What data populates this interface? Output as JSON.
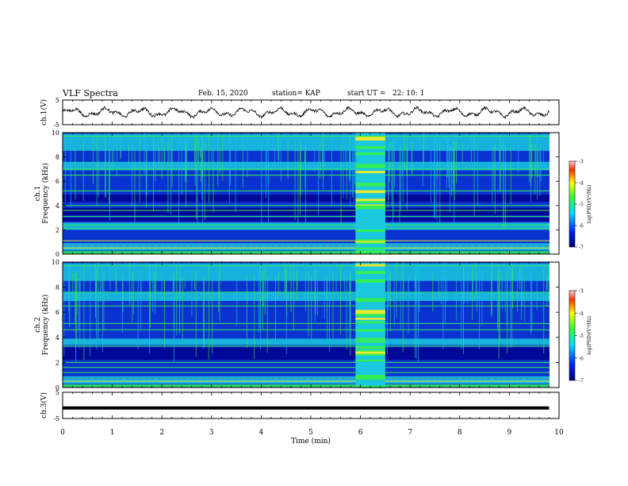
{
  "header": {
    "title": "VLF Spectra",
    "date": "Feb. 15, 2020",
    "station": "station= KAP",
    "start": "start UT =   22: 10: 1"
  },
  "chart_data": [
    {
      "type": "line",
      "panel": "ch1-waveform",
      "ylabel": "ch.1(V)",
      "ylim": [
        -5,
        5
      ],
      "y_ticks": [
        "5",
        "-5"
      ],
      "xlim": [
        0,
        10
      ],
      "shape": "noisy oscillation roughly between -2 and +2 V from 0 to ~9.8 min"
    },
    {
      "type": "heatmap",
      "panel": "ch1-spectrogram",
      "ylabel": "ch.1\nFrequency (kHz)",
      "ylim": [
        0,
        10
      ],
      "y_ticks": [
        "0",
        "2",
        "4",
        "6",
        "8",
        "10"
      ],
      "xlim": [
        0,
        10
      ],
      "colorbar": {
        "label": "log(PSD)(V²/Hz)",
        "range": [
          -7,
          -3
        ],
        "ticks": [
          "-3",
          "-4",
          "-5",
          "-6",
          "-7"
        ]
      },
      "features": [
        {
          "t_start": 5.9,
          "t_end": 6.5,
          "note": "broadband enhancement across 0-10 kHz"
        }
      ]
    },
    {
      "type": "heatmap",
      "panel": "ch2-spectrogram",
      "ylabel": "ch.2\nFrequency (kHz)",
      "ylim": [
        0,
        10
      ],
      "y_ticks": [
        "0",
        "2",
        "4",
        "6",
        "8",
        "10"
      ],
      "xlim": [
        0,
        10
      ],
      "colorbar": {
        "label": "log(PSD)(V²/Hz)",
        "range": [
          -7,
          -3
        ],
        "ticks": [
          "-3",
          "-4",
          "-5",
          "-6",
          "-7"
        ]
      },
      "features": [
        {
          "t_start": 5.9,
          "t_end": 6.5,
          "note": "broadband enhancement across 0-10 kHz"
        }
      ]
    },
    {
      "type": "line",
      "panel": "ch3-waveform",
      "ylabel": "ch.3(V)",
      "ylim": [
        -5,
        5
      ],
      "y_ticks": [
        "5",
        "-5"
      ],
      "xlim": [
        0,
        10
      ],
      "value": -1.0,
      "shape": "flat constant line"
    }
  ],
  "x_axis": {
    "label": "Time (min)",
    "ticks": [
      "0",
      "1",
      "2",
      "3",
      "4",
      "5",
      "6",
      "7",
      "8",
      "9",
      "10"
    ]
  },
  "colors": {
    "dark_blue": "#00008c",
    "blue": "#0a32d0",
    "cyan": "#1ac8e0",
    "green": "#33ee55",
    "yellow": "#e8e830",
    "red": "#e02020"
  }
}
